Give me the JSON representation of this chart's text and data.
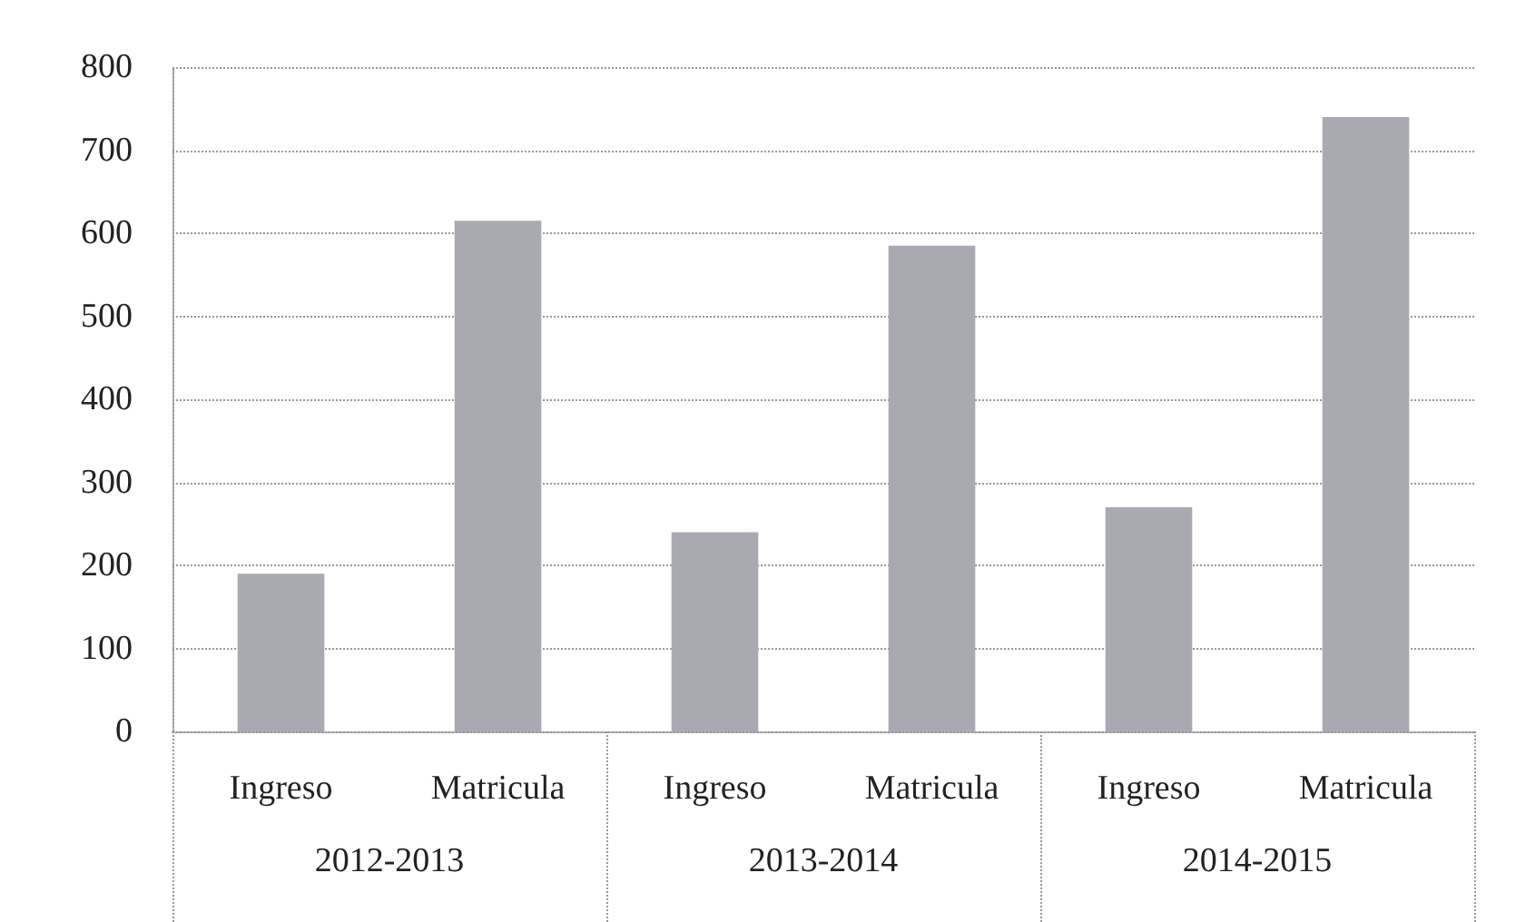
{
  "chart_data": {
    "type": "bar",
    "categories": [
      "Ingreso",
      "Matricula",
      "Ingreso",
      "Matricula",
      "Ingreso",
      "Matricula"
    ],
    "values": [
      190,
      615,
      240,
      585,
      270,
      740
    ],
    "color": "#a9a9b1",
    "ylim": [
      0,
      800
    ],
    "yticks": [
      0,
      100,
      200,
      300,
      400,
      500,
      600,
      700,
      800
    ],
    "grid": "y",
    "annotations": [
      "2012-2013",
      "2013-2014",
      "2014-2015"
    ]
  }
}
